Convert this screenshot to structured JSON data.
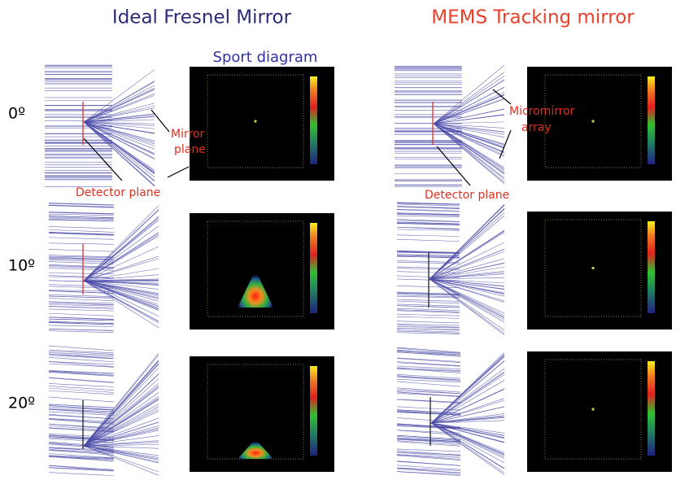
{
  "header": {
    "left_title": "Ideal Fresnel Mirror",
    "right_title": "MEMS Tracking mirror",
    "spot_title": "Sport diagram"
  },
  "rows": [
    {
      "label": "0º"
    },
    {
      "label": "10º"
    },
    {
      "label": "20º"
    }
  ],
  "annotations": {
    "mirror_plane": [
      "Mirror",
      "plane"
    ],
    "detector_plane_left": "Detector plane",
    "micromirror_array": [
      "Micromirror",
      "array"
    ],
    "detector_plane_right": "Detector plane"
  }
}
